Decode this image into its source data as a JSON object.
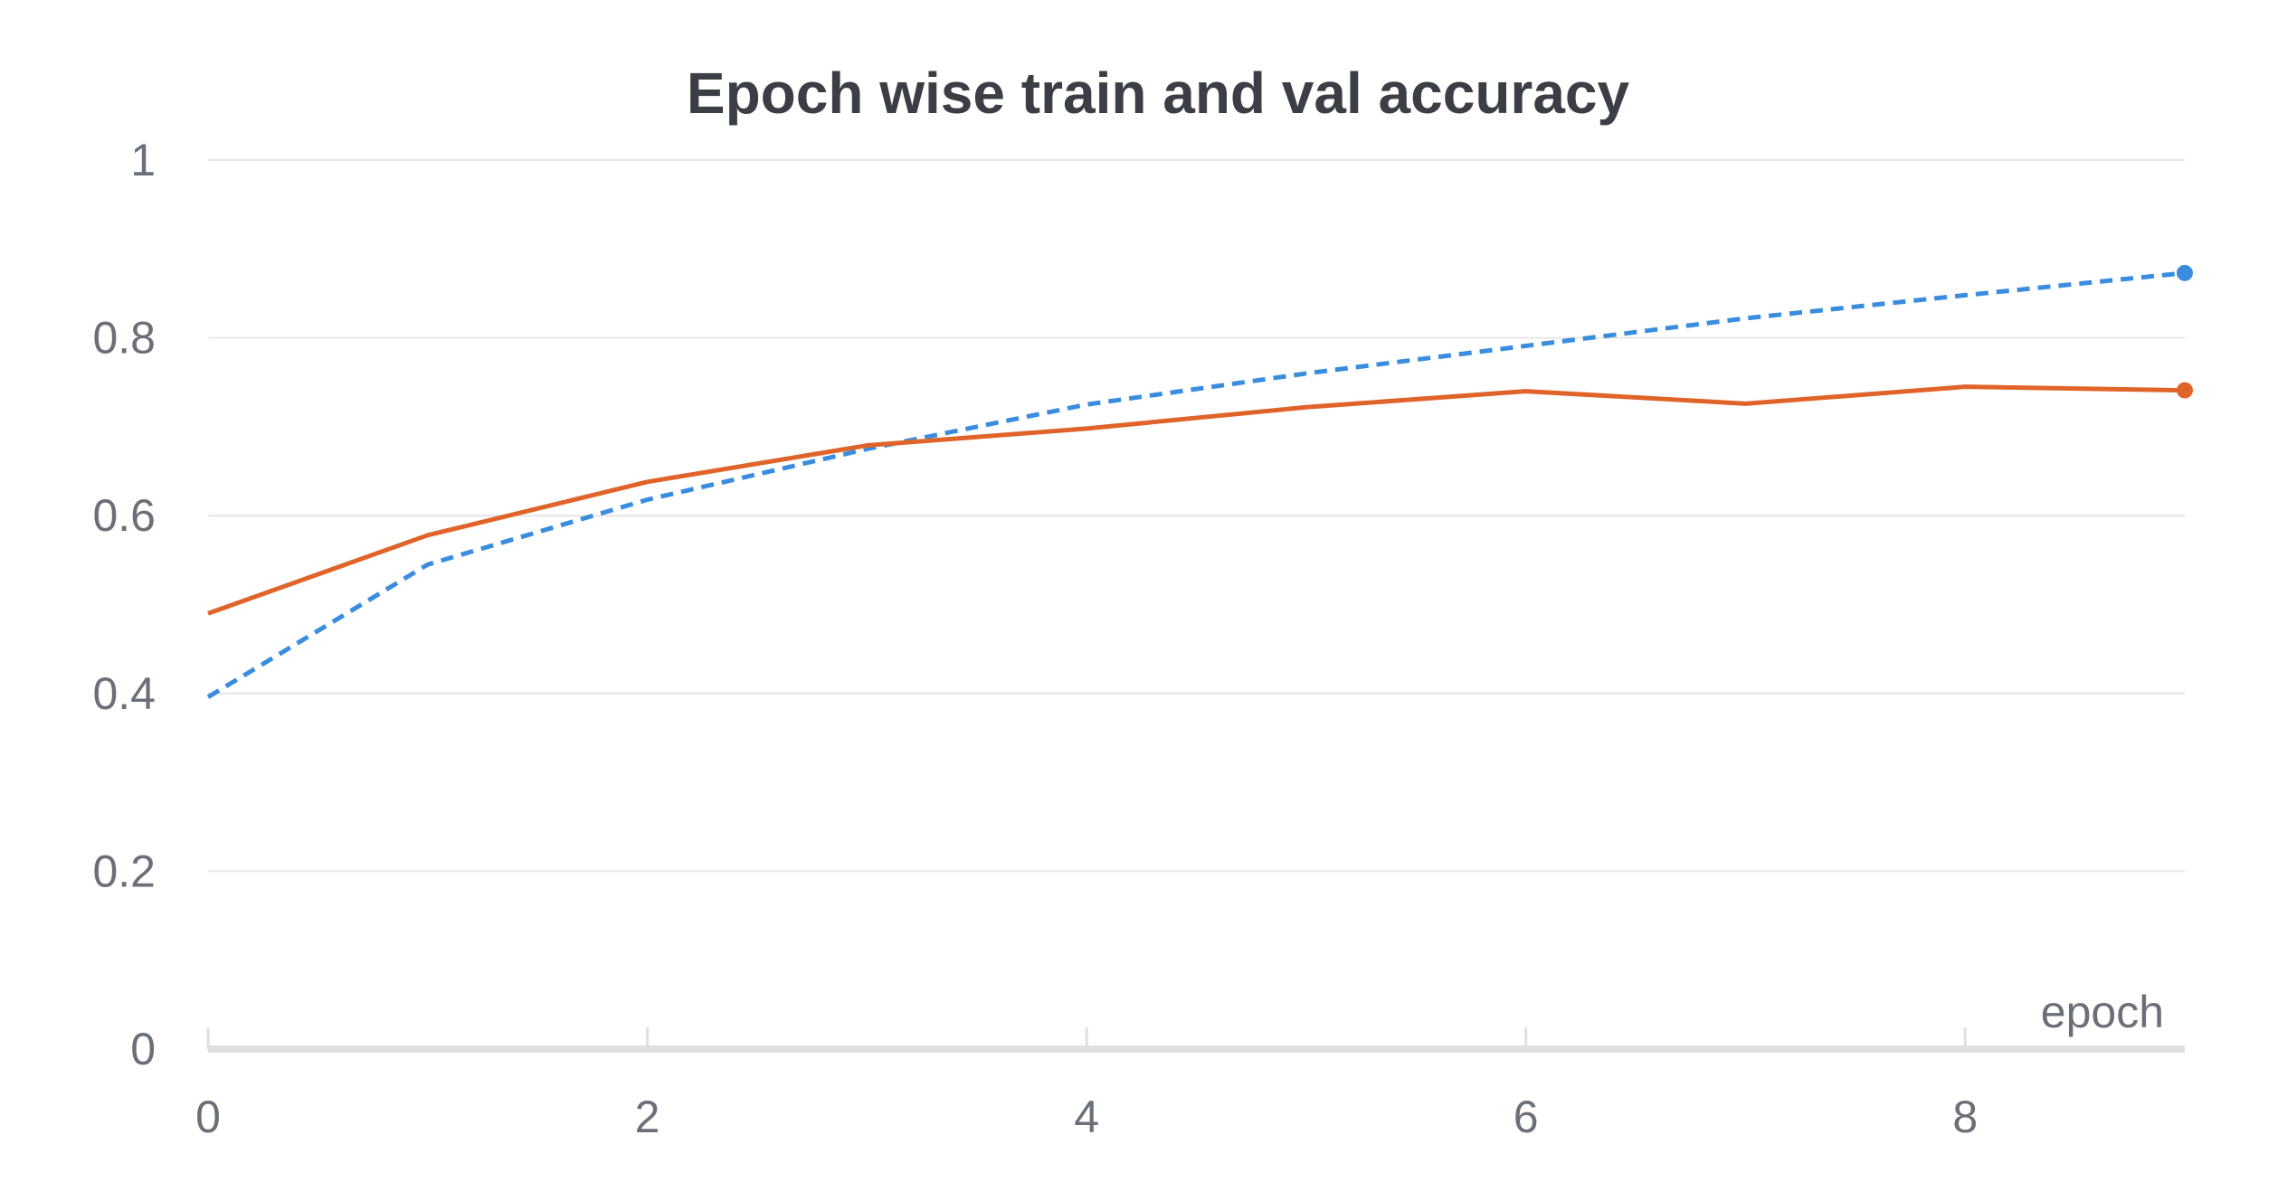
{
  "chart_data": {
    "type": "line",
    "title": "Epoch wise train and val accuracy",
    "xlabel": "epoch",
    "ylabel": "",
    "x": [
      0,
      1,
      2,
      3,
      4,
      5,
      6,
      7,
      8,
      9
    ],
    "xlim": [
      0,
      9
    ],
    "ylim": [
      0,
      1
    ],
    "x_ticks": [
      "0",
      "2",
      "4",
      "6",
      "8"
    ],
    "y_ticks": [
      "0",
      "0.2",
      "0.4",
      "0.6",
      "0.8",
      "1"
    ],
    "grid": true,
    "legend": "none",
    "series": [
      {
        "color": "#3a8dde",
        "style": "dashed",
        "values": [
          0.396,
          0.545,
          0.618,
          0.675,
          0.725,
          0.76,
          0.791,
          0.822,
          0.848,
          0.873
        ]
      },
      {
        "color": "#e0642a",
        "style": "solid",
        "values": [
          0.49,
          0.578,
          0.638,
          0.679,
          0.698,
          0.722,
          0.74,
          0.726,
          0.745,
          0.741
        ]
      }
    ]
  }
}
